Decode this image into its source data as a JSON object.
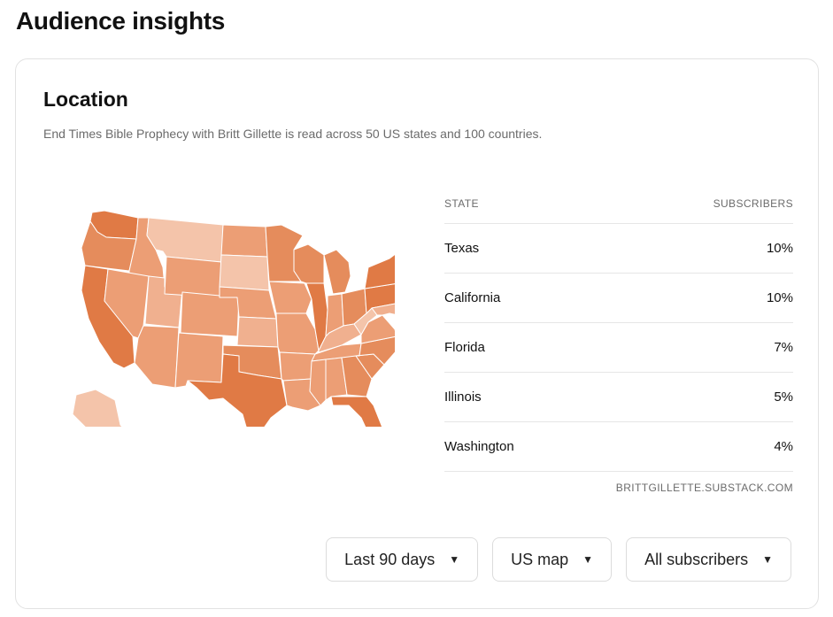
{
  "page": {
    "title": "Audience insights"
  },
  "location": {
    "title": "Location",
    "subtitle": "End Times Bible Prophecy with Britt Gillette is read across 50 US states and 100 countries.",
    "table": {
      "headers": {
        "state": "STATE",
        "subscribers": "SUBSCRIBERS"
      },
      "rows": [
        {
          "state": "Texas",
          "pct": "10%"
        },
        {
          "state": "California",
          "pct": "10%"
        },
        {
          "state": "Florida",
          "pct": "7%"
        },
        {
          "state": "Illinois",
          "pct": "5%"
        },
        {
          "state": "Washington",
          "pct": "4%"
        }
      ],
      "source": "BRITTGILLETTE.SUBSTACK.COM"
    },
    "map": {
      "colors": {
        "darkest": "#e07a45",
        "dark": "#e58c5c",
        "mid": "#ec9e75",
        "light": "#f0b08f",
        "lightest": "#f4c4aa"
      }
    }
  },
  "controls": {
    "timeframe": "Last 90 days",
    "view": "US map",
    "audience": "All subscribers"
  }
}
